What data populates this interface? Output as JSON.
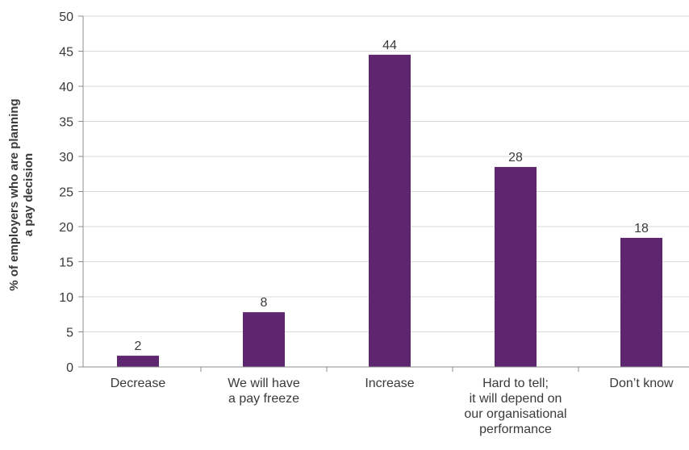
{
  "chart_data": {
    "type": "bar",
    "title": "",
    "xlabel": "",
    "ylabel": [
      "% of employers who are planning",
      "a pay decision"
    ],
    "ylim": [
      0,
      50
    ],
    "yticks": [
      0,
      5,
      10,
      15,
      20,
      25,
      30,
      35,
      40,
      45,
      50
    ],
    "grid": true,
    "categories": [
      [
        "Decrease"
      ],
      [
        "We will have",
        "a pay freeze"
      ],
      [
        "Increase"
      ],
      [
        "Hard to tell;",
        "it will depend on",
        "our organisational",
        "performance"
      ],
      [
        "Don’t know"
      ]
    ],
    "values": [
      1.6,
      7.8,
      44.5,
      28.5,
      18.4
    ],
    "value_labels": [
      "2",
      "8",
      "44",
      "28",
      "18"
    ],
    "colors": {
      "bar": "#5f2670",
      "grid": "#d9d9d9",
      "axis": "#8c8c8c",
      "text": "#3a3a3a"
    }
  }
}
